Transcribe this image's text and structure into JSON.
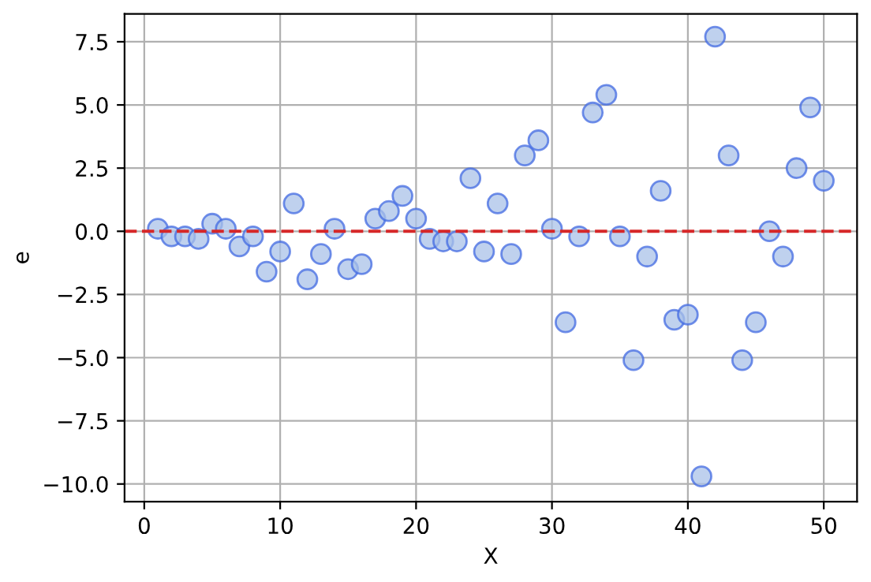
{
  "chart_data": {
    "type": "scatter",
    "xlabel": "X",
    "ylabel": "e",
    "x": [
      1,
      2,
      3,
      4,
      5,
      6,
      7,
      8,
      9,
      10,
      11,
      12,
      13,
      14,
      15,
      16,
      17,
      18,
      19,
      20,
      21,
      22,
      23,
      24,
      25,
      26,
      27,
      28,
      29,
      30,
      31,
      32,
      33,
      34,
      35,
      36,
      37,
      38,
      39,
      40,
      41,
      42,
      43,
      44,
      45,
      46,
      47,
      48,
      49,
      50
    ],
    "series": [
      {
        "color": "#a9c1e8",
        "values": [
          0.1,
          -0.2,
          -0.2,
          -0.3,
          0.3,
          0.1,
          -0.6,
          -0.2,
          -1.6,
          -0.8,
          1.1,
          -1.9,
          -0.9,
          0.1,
          -1.5,
          -1.3,
          0.5,
          0.8,
          1.4,
          0.5,
          -0.3,
          -0.4,
          -0.4,
          2.1,
          -0.8,
          1.1,
          -0.9,
          3.0,
          3.6,
          0.1,
          -3.6,
          -0.2,
          4.7,
          5.4,
          -0.2,
          -5.1,
          -1.0,
          1.6,
          -3.5,
          -3.3,
          -9.7,
          7.7,
          3.0,
          -5.1,
          -3.6,
          0.0,
          -1.0,
          2.5,
          4.9,
          2.0
        ]
      }
    ],
    "xlim": [
      -1.45,
      52.45
    ],
    "ylim": [
      -10.7,
      8.6
    ],
    "xticks": [
      0,
      10,
      20,
      30,
      40,
      50
    ],
    "yticks": [
      {
        "value": -10,
        "label": "−10.0"
      },
      {
        "value": -7.5,
        "label": "−7.5"
      },
      {
        "value": -5,
        "label": "−5.0"
      },
      {
        "value": -2.5,
        "label": "−2.5"
      },
      {
        "value": 0,
        "label": "0.0"
      },
      {
        "value": 2.5,
        "label": "2.5"
      },
      {
        "value": 5,
        "label": "5.0"
      },
      {
        "value": 7.5,
        "label": "7.5"
      }
    ],
    "ref_lines": [
      {
        "axis": "y",
        "value": 0,
        "color": "#d62728",
        "line_style": "dashed"
      }
    ],
    "grid": true,
    "marker": "circle"
  }
}
